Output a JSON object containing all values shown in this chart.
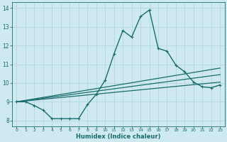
{
  "xlabel": "Humidex (Indice chaleur)",
  "bg_color": "#ceeaf0",
  "grid_color": "#aed4dc",
  "line_color": "#1a6b6b",
  "xlim": [
    -0.5,
    23.5
  ],
  "ylim": [
    7.7,
    14.3
  ],
  "yticks": [
    8,
    9,
    10,
    11,
    12,
    13,
    14
  ],
  "xticks": [
    0,
    1,
    2,
    3,
    4,
    5,
    6,
    7,
    8,
    9,
    10,
    11,
    12,
    13,
    14,
    15,
    16,
    17,
    18,
    19,
    20,
    21,
    22,
    23
  ],
  "lines": [
    {
      "x": [
        0,
        1,
        2,
        3,
        4,
        5,
        6,
        7,
        8,
        9,
        10,
        11,
        12,
        13,
        14,
        15,
        16,
        17,
        18,
        19,
        20,
        21,
        22,
        23
      ],
      "y": [
        9.0,
        9.0,
        8.8,
        8.55,
        8.1,
        8.1,
        8.1,
        8.1,
        8.85,
        9.4,
        10.15,
        11.55,
        12.8,
        12.45,
        13.55,
        13.9,
        11.85,
        11.7,
        10.95,
        10.6,
        10.05,
        9.8,
        9.75,
        9.9
      ],
      "marker": true,
      "linewidth": 1.0
    },
    {
      "x": [
        0,
        23
      ],
      "y": [
        9.0,
        10.8
      ],
      "marker": false,
      "linewidth": 0.9
    },
    {
      "x": [
        0,
        23
      ],
      "y": [
        9.0,
        10.45
      ],
      "marker": false,
      "linewidth": 0.9
    },
    {
      "x": [
        0,
        23
      ],
      "y": [
        9.0,
        10.05
      ],
      "marker": false,
      "linewidth": 0.9
    }
  ]
}
